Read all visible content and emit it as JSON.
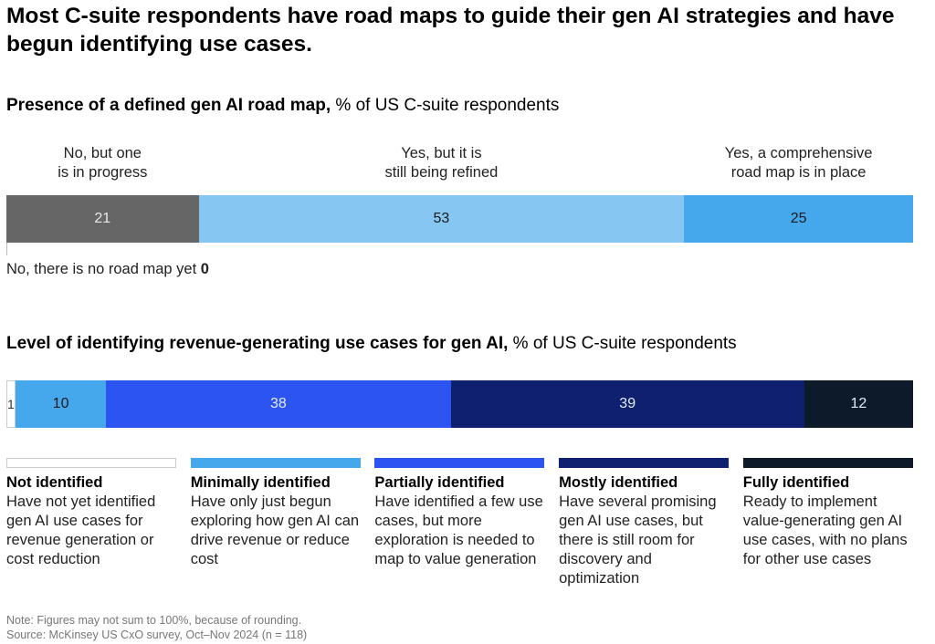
{
  "title": "Most C-suite respondents have road maps to guide their gen AI strategies and have begun identifying use cases.",
  "chart_data": [
    {
      "type": "bar",
      "orientation": "horizontal-stacked",
      "title": "Presence of a defined gen AI road map,",
      "subtitle": "% of US C-suite respondents",
      "categories": [
        "No, there is no road map yet",
        "No, but one is in progress",
        "Yes, but it is still being refined",
        "Yes, a comprehensive road map is in place"
      ],
      "labels": [
        "No, there is no road map yet",
        "No, but one\nis in progress",
        "Yes, but it is\nstill being refined",
        "Yes, a comprehensive\nroad map is in place"
      ],
      "values": [
        0,
        21,
        53,
        25
      ],
      "colors": [
        "#ffffff",
        "#666666",
        "#85c6f2",
        "#46a8ec"
      ],
      "text_colors": [
        "#000",
        "#e8e8e8",
        "#1a1a1a",
        "#1a1a1a"
      ]
    },
    {
      "type": "bar",
      "orientation": "horizontal-stacked",
      "title": "Level of identifying revenue-generating use cases for gen AI,",
      "subtitle": "% of US C-suite respondents",
      "categories": [
        "Not identified",
        "Minimally identified",
        "Partially identified",
        "Mostly identified",
        "Fully identified"
      ],
      "descriptions": [
        "Have not yet identified gen AI use cases for revenue generation or cost reduction",
        "Have only just begun exploring how gen AI can drive revenue or reduce cost",
        "Have identified a few use cases, but more exploration is needed to map to value generation",
        "Have several promising gen AI use cases, but there is still room for discovery and optimization",
        "Ready to implement value-generating gen AI use cases, with no plans for other use cases"
      ],
      "values": [
        1,
        10,
        38,
        39,
        12
      ],
      "colors": [
        "#ffffff",
        "#46a8ec",
        "#2b54f0",
        "#0f2070",
        "#0c1a2a"
      ],
      "text_colors": [
        "#333",
        "#1a1a1a",
        "#e6ecff",
        "#e6ecff",
        "#e6ecff"
      ]
    }
  ],
  "note": "Note: Figures may not sum to 100%, because of rounding.",
  "source": "Source: McKinsey US CxO survey, Oct–Nov 2024 (n = 118)"
}
